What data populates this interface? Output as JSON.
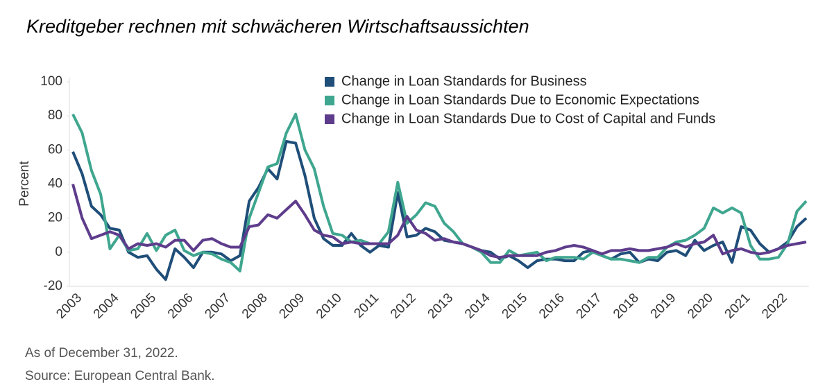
{
  "chart_data": {
    "type": "line",
    "title": "Kreditgeber rechnen mit schwächeren Wirtschaftsaussichten",
    "ylabel": "Percent",
    "notes": [
      "As of December 31, 2022.",
      "Source: European Central Bank."
    ],
    "legend": "top-right",
    "categories": [
      "2003",
      null,
      null,
      null,
      "2004",
      null,
      null,
      null,
      "2005",
      null,
      null,
      null,
      "2006",
      null,
      null,
      null,
      "2007",
      null,
      null,
      null,
      "2008",
      null,
      null,
      null,
      "2009",
      null,
      null,
      null,
      "2010",
      null,
      null,
      null,
      "2011",
      null,
      null,
      null,
      "2012",
      null,
      null,
      null,
      "2013",
      null,
      null,
      null,
      "2014",
      null,
      null,
      null,
      "2015",
      null,
      null,
      null,
      "2016",
      null,
      null,
      null,
      "2017",
      null,
      null,
      null,
      "2018",
      null,
      null,
      null,
      "2019",
      null,
      null,
      null,
      "2020",
      null,
      null,
      null,
      "2021",
      null,
      null,
      null,
      "2022",
      null,
      null,
      null
    ],
    "ylim": [
      -20,
      100
    ],
    "yticks": [
      -20,
      0,
      20,
      40,
      60,
      80,
      100
    ],
    "series": [
      {
        "name": "Change in Loan Standards for Business",
        "color": "#1f4e79",
        "values": [
          59,
          46,
          27,
          22,
          14,
          13,
          0,
          -3,
          -2,
          -10,
          -16,
          2,
          -3,
          -9,
          0,
          0,
          -1,
          -5,
          -2,
          30,
          38,
          49,
          43,
          65,
          64,
          45,
          20,
          8,
          4,
          4,
          11,
          4,
          0,
          4,
          3,
          35,
          9,
          10,
          14,
          12,
          7,
          6,
          5,
          3,
          1,
          0,
          -4,
          -2,
          -5,
          -9,
          -5,
          -4,
          -4,
          -5,
          -5,
          0,
          1,
          -2,
          -4,
          -1,
          0,
          -6,
          -4,
          -5,
          0,
          1,
          -2,
          7,
          1,
          4,
          6,
          -6,
          15,
          13,
          5,
          0,
          2,
          6,
          15,
          20
        ]
      },
      {
        "name": "Change in Loan Standards Due to Economic Expectations",
        "color": "#3fa68f",
        "values": [
          81,
          70,
          48,
          34,
          2,
          10,
          1,
          2,
          11,
          1,
          10,
          13,
          1,
          -2,
          0,
          -1,
          -4,
          -6,
          -11,
          20,
          35,
          50,
          52,
          70,
          81,
          60,
          49,
          27,
          11,
          10,
          6,
          7,
          5,
          5,
          12,
          41,
          17,
          22,
          29,
          27,
          17,
          12,
          5,
          3,
          0,
          -6,
          -6,
          1,
          -2,
          -1,
          0,
          -5,
          -3,
          -3,
          -3,
          -4,
          0,
          -2,
          -4,
          -4,
          -5,
          -6,
          -3,
          -3,
          3,
          6,
          7,
          10,
          14,
          26,
          23,
          26,
          23,
          4,
          -4,
          -4,
          -3,
          5,
          24,
          30
        ]
      },
      {
        "name": "Change in Loan Standards Due to Cost of Capital and Funds",
        "color": "#5e3c8c",
        "values": [
          40,
          20,
          8,
          10,
          12,
          10,
          2,
          5,
          4,
          5,
          3,
          7,
          7,
          1,
          7,
          8,
          5,
          3,
          3,
          15,
          16,
          22,
          20,
          25,
          30,
          22,
          13,
          10,
          9,
          5,
          6,
          5,
          5,
          5,
          5,
          10,
          21,
          13,
          11,
          7,
          8,
          6,
          5,
          3,
          1,
          -2,
          -3,
          -2,
          -2,
          -2,
          -2,
          0,
          1,
          3,
          4,
          3,
          1,
          -1,
          1,
          1,
          2,
          1,
          1,
          2,
          3,
          5,
          3,
          5,
          6,
          10,
          -1,
          1,
          2,
          0,
          -1,
          0,
          2,
          4,
          5,
          6
        ]
      }
    ]
  }
}
